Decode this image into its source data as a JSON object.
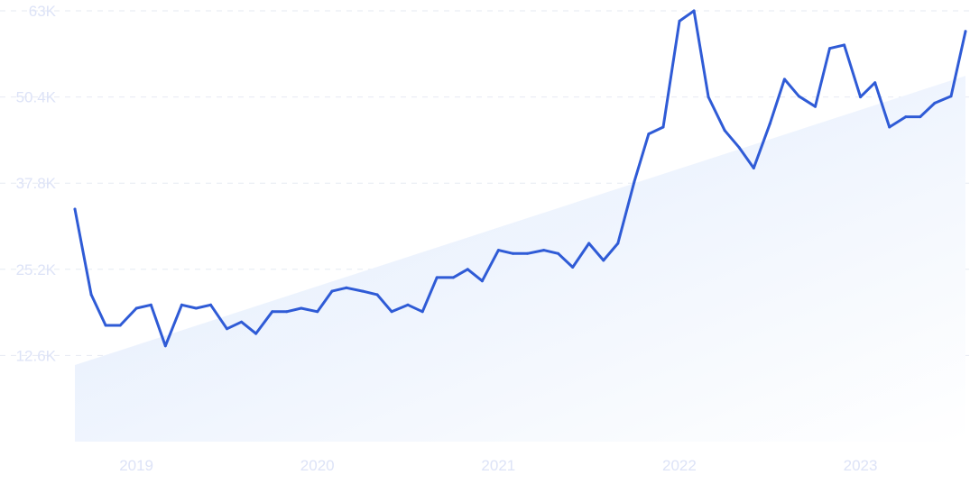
{
  "chart_data": {
    "type": "line",
    "title": "",
    "xlabel": "",
    "ylabel": "",
    "grid": true,
    "yticks": [
      "12.6K",
      "25.2K",
      "37.8K",
      "50.4K",
      "63K"
    ],
    "ytick_values": [
      12600,
      25200,
      37800,
      50400,
      63000
    ],
    "ylim": [
      0,
      63000
    ],
    "xticks": [
      "2019",
      "2020",
      "2021",
      "2022",
      "2023"
    ],
    "xtick_values": [
      2019.0,
      2020.0,
      2021.0,
      2022.0,
      2023.0
    ],
    "xlim": [
      2018.8,
      2023.75
    ],
    "colors": {
      "line": "#2f5bd6",
      "trend_fill_start": "#dfeafc",
      "trend_fill_end": "#ffffff",
      "grid": "#e6eaf2",
      "tick_text": "#dde3f7"
    },
    "series": [
      {
        "x": [
          2018.83,
          2018.92,
          2019.0,
          2019.08,
          2019.17,
          2019.25,
          2019.33,
          2019.42,
          2019.5,
          2019.58,
          2019.67,
          2019.75,
          2019.83,
          2019.92,
          2020.0,
          2020.08,
          2020.17,
          2020.25,
          2020.33,
          2020.42,
          2020.5,
          2020.58,
          2020.67,
          2020.75,
          2020.83,
          2020.92,
          2021.0,
          2021.08,
          2021.17,
          2021.25,
          2021.33,
          2021.42,
          2021.5,
          2021.58,
          2021.67,
          2021.75,
          2021.83,
          2021.92,
          2022.0,
          2022.08,
          2022.17,
          2022.25,
          2022.33,
          2022.42,
          2022.5,
          2022.58,
          2022.67,
          2022.75,
          2022.83,
          2022.92,
          2023.0,
          2023.08,
          2023.17,
          2023.25,
          2023.33,
          2023.42,
          2023.5,
          2023.58,
          2023.67,
          2023.75
        ],
        "values": [
          34000,
          21500,
          17000,
          17000,
          19500,
          20000,
          14000,
          20000,
          19500,
          20000,
          16500,
          17500,
          15800,
          19000,
          19000,
          19500,
          19000,
          22000,
          22500,
          22000,
          21500,
          19000,
          20000,
          19000,
          24000,
          24000,
          25200,
          23500,
          28000,
          27500,
          27500,
          28000,
          27500,
          25500,
          29000,
          26500,
          29000,
          38000,
          45000,
          46000,
          61500,
          63000,
          50400,
          45500,
          43000,
          40000,
          46500,
          53000,
          50500,
          49000,
          57500,
          58000,
          50400,
          52500,
          46000,
          47500,
          47500,
          49500,
          50500,
          60000
        ]
      }
    ],
    "trend_band": {
      "x": [
        2018.83,
        2023.75
      ],
      "top": [
        11200,
        53500
      ],
      "bottom": [
        0,
        0
      ]
    }
  }
}
